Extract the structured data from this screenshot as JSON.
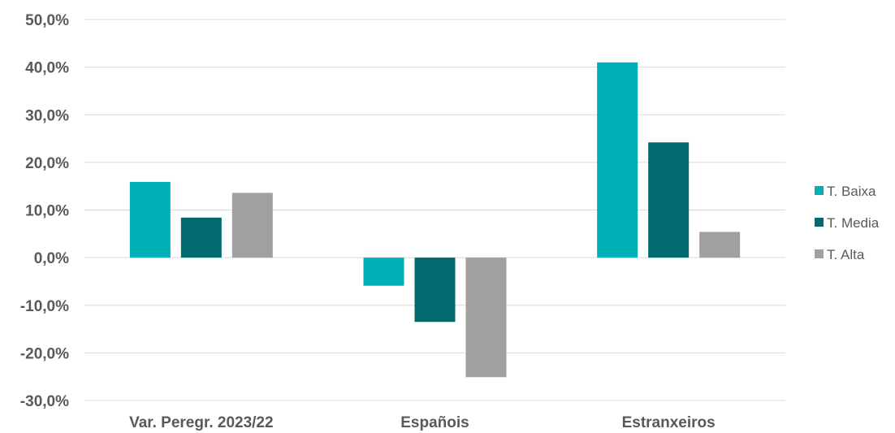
{
  "chart_data": {
    "type": "bar",
    "categories": [
      "Var. Peregr. 2023/22",
      "Españois",
      "Estranxeiros"
    ],
    "series": [
      {
        "name": "T. Baixa",
        "color": "#00B0B9",
        "values": [
          15.9,
          -5.9,
          41.0
        ]
      },
      {
        "name": "T. Media",
        "color": "#006A6E",
        "values": [
          8.4,
          -13.5,
          24.2
        ]
      },
      {
        "name": "T. Alta",
        "color": "#A0A09F",
        "values": [
          13.6,
          -25.1,
          5.4
        ]
      }
    ],
    "ylim": [
      -30,
      50
    ],
    "yticks": [
      "50,0%",
      "40,0%",
      "30,0%",
      "20,0%",
      "10,0%",
      "0,0%",
      "-10,0%",
      "-20,0%",
      "-30,0%"
    ],
    "ytick_values": [
      50,
      40,
      30,
      20,
      10,
      0,
      -10,
      -20,
      -30
    ],
    "grid": true,
    "legend_position": "right",
    "title": "",
    "xlabel": "",
    "ylabel": ""
  }
}
